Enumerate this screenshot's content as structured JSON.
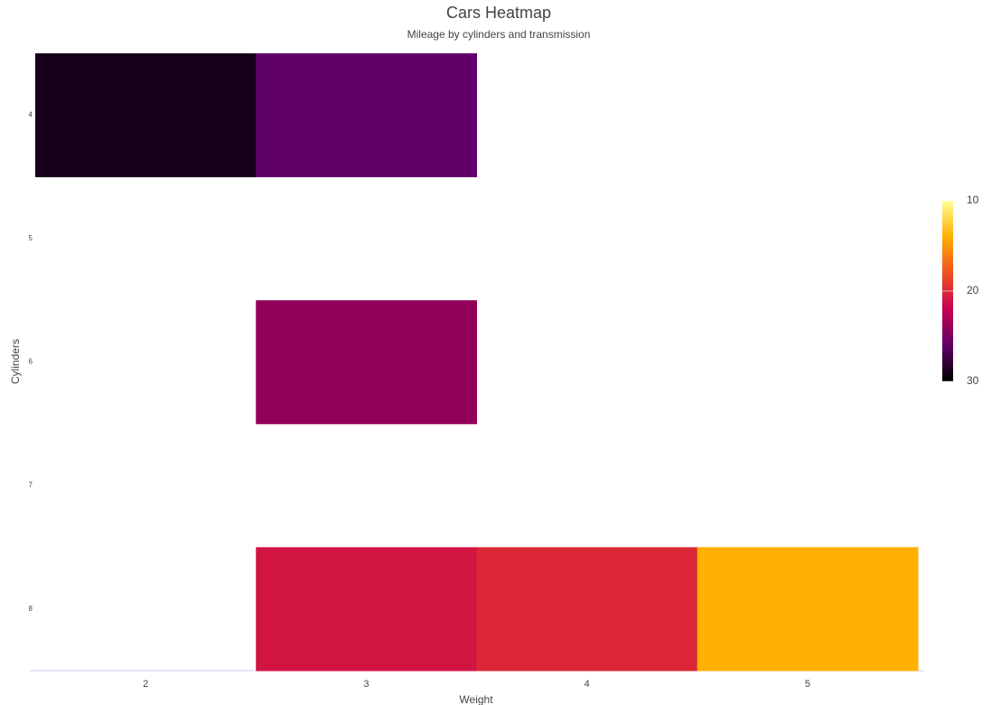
{
  "chart_data": {
    "type": "heatmap",
    "title": "Cars Heatmap",
    "subtitle": "Mileage by cylinders and transmission",
    "x_label": "Weight",
    "y_label": "Cylinders",
    "x": [
      2,
      3,
      4,
      5
    ],
    "y": [
      4,
      5,
      6,
      7,
      8
    ],
    "z": [
      [
        29,
        26,
        null,
        null
      ],
      [
        null,
        null,
        null,
        null
      ],
      [
        null,
        24,
        null,
        null
      ],
      [
        null,
        null,
        null,
        null
      ],
      [
        null,
        21,
        20,
        14
      ]
    ],
    "colorscale": [
      "#000000",
      "#5f0068",
      "#c7004e",
      "#f0501e",
      "#ffb000",
      "#ffff99"
    ],
    "zlim": [
      30,
      10
    ],
    "zticks": [
      10,
      20,
      30
    ]
  }
}
